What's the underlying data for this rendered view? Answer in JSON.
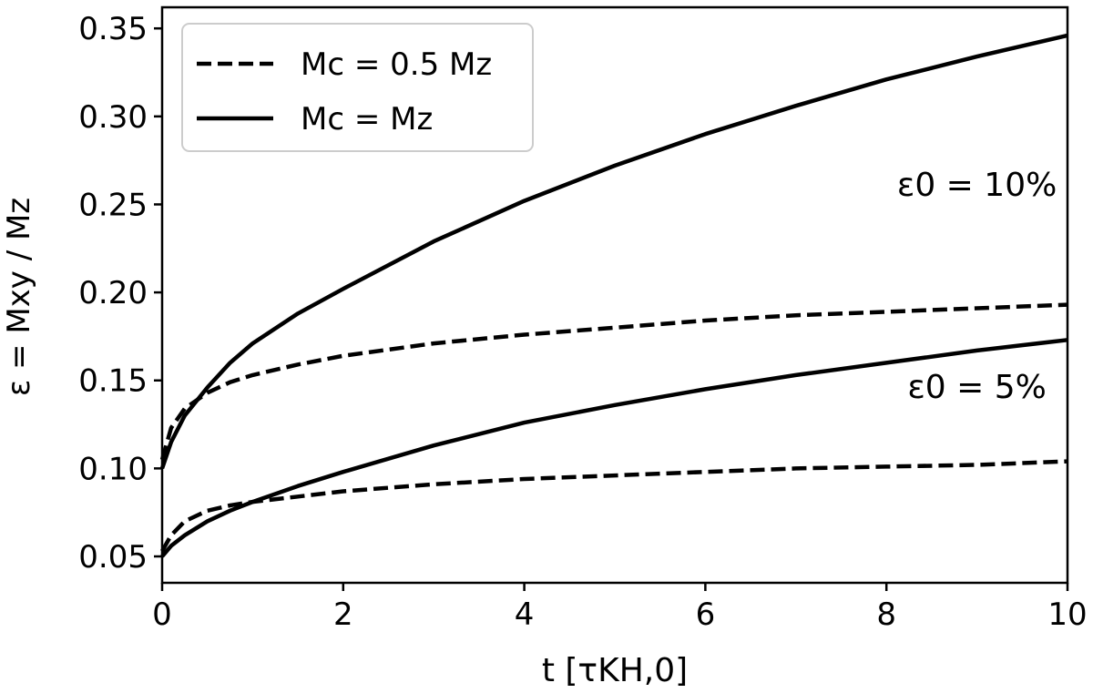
{
  "chart_data": {
    "type": "line",
    "xlabel": "t [τKH,0]",
    "ylabel": "ε = Mxy / Mz",
    "xlim": [
      0,
      10
    ],
    "ylim": [
      0.035,
      0.362
    ],
    "xticks": [
      0,
      2,
      4,
      6,
      8,
      10
    ],
    "xtick_labels": [
      "0",
      "2",
      "4",
      "6",
      "8",
      "10"
    ],
    "yticks": [
      0.05,
      0.1,
      0.15,
      0.2,
      0.25,
      0.3,
      0.35
    ],
    "ytick_labels": [
      "0.05",
      "0.10",
      "0.15",
      "0.20",
      "0.25",
      "0.30",
      "0.35"
    ],
    "grid": false,
    "legend": {
      "placement": "top-left",
      "entries": [
        {
          "label": "Mc = 0.5 Mz",
          "style": "dashed"
        },
        {
          "label": "Mc = Mz",
          "style": "solid"
        }
      ]
    },
    "annotations": [
      {
        "text": "ε0 = 10%",
        "x": 9.0,
        "y": 0.255
      },
      {
        "text": "ε0 = 5%",
        "x": 9.0,
        "y": 0.14
      }
    ],
    "series": [
      {
        "group": "ε0 = 10%",
        "style": "solid",
        "x": [
          0,
          0.1,
          0.25,
          0.5,
          0.75,
          1,
          1.5,
          2,
          3,
          4,
          5,
          6,
          7,
          8,
          9,
          10
        ],
        "y": [
          0.1,
          0.115,
          0.13,
          0.146,
          0.16,
          0.171,
          0.188,
          0.202,
          0.229,
          0.252,
          0.272,
          0.29,
          0.306,
          0.321,
          0.334,
          0.346
        ]
      },
      {
        "group": "ε0 = 10%",
        "style": "dashed",
        "x": [
          0,
          0.1,
          0.25,
          0.5,
          0.75,
          1,
          1.5,
          2,
          3,
          4,
          5,
          6,
          7,
          8,
          9,
          10
        ],
        "y": [
          0.105,
          0.123,
          0.134,
          0.143,
          0.149,
          0.153,
          0.159,
          0.164,
          0.171,
          0.176,
          0.18,
          0.184,
          0.187,
          0.189,
          0.191,
          0.193
        ]
      },
      {
        "group": "ε0 = 5%",
        "style": "solid",
        "x": [
          0,
          0.1,
          0.25,
          0.5,
          0.75,
          1,
          1.5,
          2,
          3,
          4,
          5,
          6,
          7,
          8,
          9,
          10
        ],
        "y": [
          0.05,
          0.056,
          0.062,
          0.07,
          0.076,
          0.081,
          0.09,
          0.098,
          0.113,
          0.126,
          0.136,
          0.145,
          0.153,
          0.16,
          0.167,
          0.173
        ]
      },
      {
        "group": "ε0 = 5%",
        "style": "dashed",
        "x": [
          0,
          0.1,
          0.25,
          0.5,
          0.75,
          1,
          1.5,
          2,
          3,
          4,
          5,
          6,
          7,
          8,
          9,
          10
        ],
        "y": [
          0.053,
          0.062,
          0.07,
          0.076,
          0.079,
          0.081,
          0.084,
          0.087,
          0.091,
          0.094,
          0.096,
          0.098,
          0.1,
          0.101,
          0.102,
          0.104
        ]
      }
    ]
  }
}
